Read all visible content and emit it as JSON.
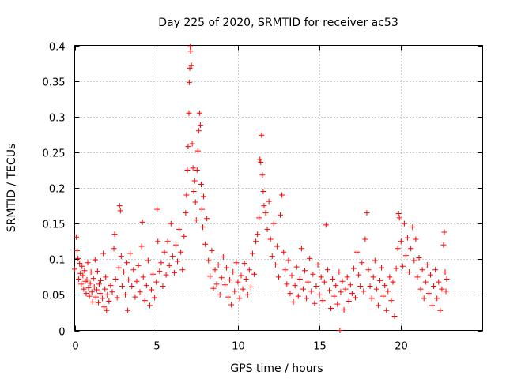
{
  "chart_data": {
    "type": "scatter",
    "title": "Day 225 of 2020, SRMTID for receiver ac53",
    "xlabel": "GPS time / hours",
    "ylabel": "SRMTID / TECUs",
    "xlim": [
      0,
      25
    ],
    "ylim": [
      0,
      0.4
    ],
    "xticks": [
      0,
      5,
      10,
      15,
      20
    ],
    "xtick_labels": [
      "0",
      "5",
      "10",
      "15",
      "20"
    ],
    "yticks": [
      0,
      0.05,
      0.1,
      0.15,
      0.2,
      0.25,
      0.3,
      0.35,
      0.4
    ],
    "ytick_labels": [
      "0",
      "0.05",
      "0.1",
      "0.15",
      "0.2",
      "0.25",
      "0.3",
      "0.35",
      "0.4"
    ],
    "grid": true,
    "marker": "+",
    "series": [
      {
        "name": "SRMTID",
        "color": "#ff0000",
        "points": [
          [
            0.0,
            0.086
          ],
          [
            0.1,
            0.131
          ],
          [
            0.15,
            0.112
          ],
          [
            0.2,
            0.101
          ],
          [
            0.25,
            0.072
          ],
          [
            0.3,
            0.094
          ],
          [
            0.35,
            0.08
          ],
          [
            0.4,
            0.065
          ],
          [
            0.45,
            0.09
          ],
          [
            0.5,
            0.077
          ],
          [
            0.55,
            0.058
          ],
          [
            0.6,
            0.084
          ],
          [
            0.65,
            0.069
          ],
          [
            0.7,
            0.052
          ],
          [
            0.75,
            0.071
          ],
          [
            0.8,
            0.095
          ],
          [
            0.85,
            0.06
          ],
          [
            0.9,
            0.048
          ],
          [
            0.95,
            0.066
          ],
          [
            1.0,
            0.082
          ],
          [
            1.05,
            0.054
          ],
          [
            1.1,
            0.04
          ],
          [
            1.15,
            0.073
          ],
          [
            1.2,
            0.061
          ],
          [
            1.25,
            0.099
          ],
          [
            1.3,
            0.047
          ],
          [
            1.35,
            0.057
          ],
          [
            1.4,
            0.083
          ],
          [
            1.45,
            0.039
          ],
          [
            1.5,
            0.065
          ],
          [
            1.55,
            0.052
          ],
          [
            1.6,
            0.07
          ],
          [
            1.7,
            0.045
          ],
          [
            1.75,
            0.108
          ],
          [
            1.8,
            0.033
          ],
          [
            1.85,
            0.058
          ],
          [
            1.9,
            0.075
          ],
          [
            1.95,
            0.028
          ],
          [
            2.0,
            0.05
          ],
          [
            2.1,
            0.041
          ],
          [
            2.2,
            0.063
          ],
          [
            2.3,
            0.054
          ],
          [
            2.4,
            0.115
          ],
          [
            2.45,
            0.135
          ],
          [
            2.5,
            0.072
          ],
          [
            2.6,
            0.046
          ],
          [
            2.7,
            0.088
          ],
          [
            2.75,
            0.175
          ],
          [
            2.8,
            0.168
          ],
          [
            2.85,
            0.104
          ],
          [
            2.9,
            0.062
          ],
          [
            3.0,
            0.082
          ],
          [
            3.1,
            0.05
          ],
          [
            3.2,
            0.095
          ],
          [
            3.25,
            0.028
          ],
          [
            3.3,
            0.071
          ],
          [
            3.4,
            0.108
          ],
          [
            3.5,
            0.062
          ],
          [
            3.6,
            0.085
          ],
          [
            3.7,
            0.047
          ],
          [
            3.8,
            0.069
          ],
          [
            3.9,
            0.091
          ],
          [
            4.0,
            0.054
          ],
          [
            4.1,
            0.118
          ],
          [
            4.15,
            0.152
          ],
          [
            4.2,
            0.075
          ],
          [
            4.3,
            0.042
          ],
          [
            4.4,
            0.063
          ],
          [
            4.5,
            0.098
          ],
          [
            4.6,
            0.035
          ],
          [
            4.7,
            0.057
          ],
          [
            4.8,
            0.079
          ],
          [
            4.9,
            0.046
          ],
          [
            5.0,
            0.068
          ],
          [
            5.05,
            0.17
          ],
          [
            5.1,
            0.125
          ],
          [
            5.2,
            0.083
          ],
          [
            5.3,
            0.095
          ],
          [
            5.4,
            0.062
          ],
          [
            5.5,
            0.11
          ],
          [
            5.6,
            0.078
          ],
          [
            5.7,
            0.125
          ],
          [
            5.8,
            0.091
          ],
          [
            5.9,
            0.15
          ],
          [
            6.0,
            0.104
          ],
          [
            6.1,
            0.081
          ],
          [
            6.2,
            0.12
          ],
          [
            6.3,
            0.097
          ],
          [
            6.4,
            0.142
          ],
          [
            6.5,
            0.11
          ],
          [
            6.6,
            0.085
          ],
          [
            6.7,
            0.132
          ],
          [
            6.8,
            0.165
          ],
          [
            6.85,
            0.19
          ],
          [
            6.9,
            0.225
          ],
          [
            6.95,
            0.258
          ],
          [
            7.0,
            0.305
          ],
          [
            7.02,
            0.348
          ],
          [
            7.05,
            0.368
          ],
          [
            7.08,
            0.398
          ],
          [
            7.1,
            0.392
          ],
          [
            7.15,
            0.372
          ],
          [
            7.2,
            0.262
          ],
          [
            7.25,
            0.228
          ],
          [
            7.3,
            0.195
          ],
          [
            7.35,
            0.21
          ],
          [
            7.4,
            0.18
          ],
          [
            7.45,
            0.155
          ],
          [
            7.5,
            0.225
          ],
          [
            7.55,
            0.252
          ],
          [
            7.6,
            0.28
          ],
          [
            7.65,
            0.305
          ],
          [
            7.7,
            0.288
          ],
          [
            7.75,
            0.205
          ],
          [
            7.8,
            0.17
          ],
          [
            7.85,
            0.145
          ],
          [
            7.9,
            0.188
          ],
          [
            8.0,
            0.121
          ],
          [
            8.1,
            0.157
          ],
          [
            8.2,
            0.098
          ],
          [
            8.3,
            0.076
          ],
          [
            8.4,
            0.112
          ],
          [
            8.5,
            0.059
          ],
          [
            8.6,
            0.085
          ],
          [
            8.7,
            0.065
          ],
          [
            8.8,
            0.092
          ],
          [
            8.9,
            0.05
          ],
          [
            9.0,
            0.074
          ],
          [
            9.1,
            0.103
          ],
          [
            9.2,
            0.064
          ],
          [
            9.3,
            0.088
          ],
          [
            9.4,
            0.047
          ],
          [
            9.5,
            0.071
          ],
          [
            9.6,
            0.036
          ],
          [
            9.7,
            0.082
          ],
          [
            9.8,
            0.055
          ],
          [
            9.9,
            0.095
          ],
          [
            10.0,
            0.068
          ],
          [
            10.1,
            0.045
          ],
          [
            10.2,
            0.077
          ],
          [
            10.3,
            0.058
          ],
          [
            10.4,
            0.094
          ],
          [
            10.5,
            0.072
          ],
          [
            10.6,
            0.05
          ],
          [
            10.7,
            0.085
          ],
          [
            10.8,
            0.061
          ],
          [
            10.9,
            0.108
          ],
          [
            11.0,
            0.079
          ],
          [
            11.1,
            0.125
          ],
          [
            11.2,
            0.135
          ],
          [
            11.3,
            0.158
          ],
          [
            11.35,
            0.24
          ],
          [
            11.4,
            0.236
          ],
          [
            11.45,
            0.274
          ],
          [
            11.5,
            0.218
          ],
          [
            11.55,
            0.195
          ],
          [
            11.6,
            0.175
          ],
          [
            11.7,
            0.165
          ],
          [
            11.8,
            0.142
          ],
          [
            11.9,
            0.181
          ],
          [
            12.0,
            0.128
          ],
          [
            12.1,
            0.104
          ],
          [
            12.2,
            0.15
          ],
          [
            12.3,
            0.092
          ],
          [
            12.4,
            0.118
          ],
          [
            12.5,
            0.075
          ],
          [
            12.6,
            0.162
          ],
          [
            12.7,
            0.19
          ],
          [
            12.8,
            0.11
          ],
          [
            12.9,
            0.085
          ],
          [
            13.0,
            0.065
          ],
          [
            13.1,
            0.098
          ],
          [
            13.2,
            0.052
          ],
          [
            13.3,
            0.077
          ],
          [
            13.4,
            0.04
          ],
          [
            13.5,
            0.063
          ],
          [
            13.6,
            0.089
          ],
          [
            13.7,
            0.048
          ],
          [
            13.8,
            0.072
          ],
          [
            13.9,
            0.115
          ],
          [
            14.0,
            0.058
          ],
          [
            14.1,
            0.084
          ],
          [
            14.2,
            0.045
          ],
          [
            14.3,
            0.068
          ],
          [
            14.4,
            0.101
          ],
          [
            14.5,
            0.055
          ],
          [
            14.6,
            0.079
          ],
          [
            14.7,
            0.038
          ],
          [
            14.8,
            0.062
          ],
          [
            14.9,
            0.092
          ],
          [
            15.0,
            0.05
          ],
          [
            15.1,
            0.075
          ],
          [
            15.2,
            0.042
          ],
          [
            15.3,
            0.068
          ],
          [
            15.4,
            0.148
          ],
          [
            15.5,
            0.085
          ],
          [
            15.6,
            0.056
          ],
          [
            15.7,
            0.031
          ],
          [
            15.8,
            0.072
          ],
          [
            15.9,
            0.048
          ],
          [
            16.0,
            0.063
          ],
          [
            16.1,
            0.037
          ],
          [
            16.2,
            0.082
          ],
          [
            16.25,
            0.0
          ],
          [
            16.3,
            0.054
          ],
          [
            16.4,
            0.069
          ],
          [
            16.5,
            0.029
          ],
          [
            16.6,
            0.058
          ],
          [
            16.7,
            0.075
          ],
          [
            16.8,
            0.041
          ],
          [
            16.9,
            0.064
          ],
          [
            17.0,
            0.052
          ],
          [
            17.1,
            0.087
          ],
          [
            17.2,
            0.046
          ],
          [
            17.3,
            0.11
          ],
          [
            17.4,
            0.078
          ],
          [
            17.5,
            0.062
          ],
          [
            17.6,
            0.095
          ],
          [
            17.7,
            0.055
          ],
          [
            17.8,
            0.128
          ],
          [
            17.9,
            0.165
          ],
          [
            18.0,
            0.085
          ],
          [
            18.1,
            0.062
          ],
          [
            18.2,
            0.045
          ],
          [
            18.3,
            0.075
          ],
          [
            18.4,
            0.098
          ],
          [
            18.5,
            0.058
          ],
          [
            18.6,
            0.035
          ],
          [
            18.7,
            0.07
          ],
          [
            18.8,
            0.088
          ],
          [
            18.9,
            0.048
          ],
          [
            19.0,
            0.063
          ],
          [
            19.1,
            0.028
          ],
          [
            19.2,
            0.055
          ],
          [
            19.3,
            0.075
          ],
          [
            19.4,
            0.042
          ],
          [
            19.5,
            0.068
          ],
          [
            19.6,
            0.02
          ],
          [
            19.7,
            0.087
          ],
          [
            19.8,
            0.115
          ],
          [
            19.85,
            0.164
          ],
          [
            19.9,
            0.158
          ],
          [
            20.0,
            0.125
          ],
          [
            20.1,
            0.09
          ],
          [
            20.2,
            0.15
          ],
          [
            20.3,
            0.105
          ],
          [
            20.4,
            0.13
          ],
          [
            20.5,
            0.082
          ],
          [
            20.6,
            0.115
          ],
          [
            20.7,
            0.145
          ],
          [
            20.8,
            0.098
          ],
          [
            20.9,
            0.128
          ],
          [
            21.0,
            0.075
          ],
          [
            21.1,
            0.102
          ],
          [
            21.2,
            0.058
          ],
          [
            21.3,
            0.085
          ],
          [
            21.4,
            0.045
          ],
          [
            21.5,
            0.068
          ],
          [
            21.6,
            0.092
          ],
          [
            21.7,
            0.052
          ],
          [
            21.8,
            0.078
          ],
          [
            21.9,
            0.035
          ],
          [
            22.0,
            0.062
          ],
          [
            22.1,
            0.085
          ],
          [
            22.2,
            0.045
          ],
          [
            22.3,
            0.068
          ],
          [
            22.4,
            0.028
          ],
          [
            22.5,
            0.058
          ],
          [
            22.6,
            0.12
          ],
          [
            22.65,
            0.138
          ],
          [
            22.7,
            0.082
          ],
          [
            22.75,
            0.055
          ],
          [
            22.8,
            0.072
          ]
        ]
      }
    ]
  }
}
